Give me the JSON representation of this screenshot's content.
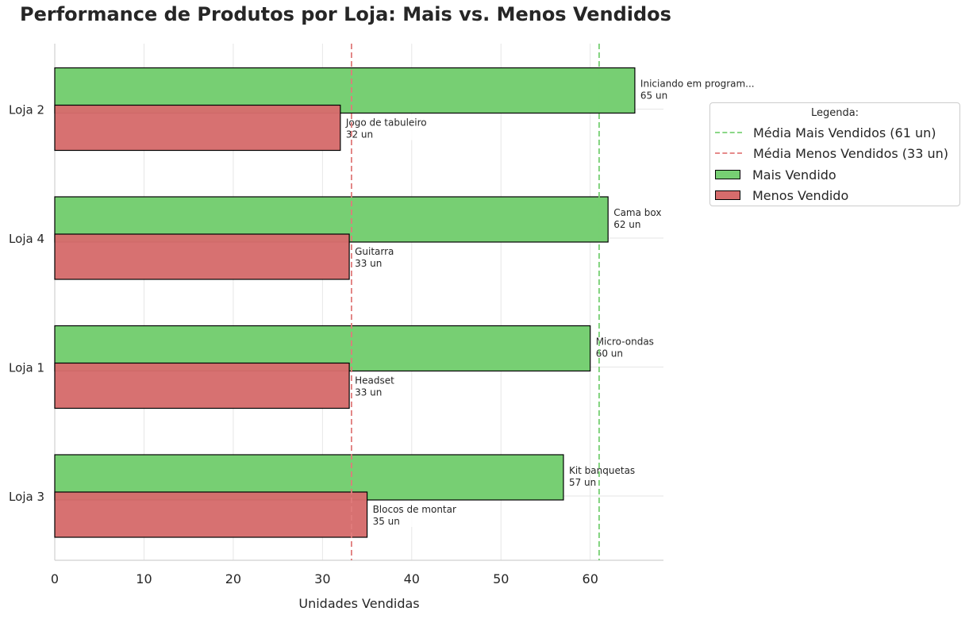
{
  "chart_data": {
    "type": "bar",
    "orientation": "horizontal",
    "title": "Performance de Produtos por Loja: Mais vs. Menos Vendidos",
    "xlabel": "Unidades Vendidas",
    "ylabel": "",
    "xlim": [
      0,
      68
    ],
    "xticks": [
      0,
      10,
      20,
      30,
      40,
      50,
      60
    ],
    "grid": true,
    "categories": [
      "Loja 2",
      "Loja 4",
      "Loja 1",
      "Loja 3"
    ],
    "series": [
      {
        "name": "Mais Vendido",
        "color": "#77cf73",
        "values": [
          65,
          62,
          60,
          57
        ],
        "products": [
          "Iniciando em program...",
          "Cama box",
          "Micro-ondas",
          "Kit banquetas"
        ],
        "value_labels": [
          "65 un",
          "62 un",
          "60 un",
          "57 un"
        ]
      },
      {
        "name": "Menos Vendido",
        "color": "#d66c6c",
        "values": [
          32,
          33,
          33,
          35
        ],
        "products": [
          "Jogo de tabuleiro",
          "Guitarra",
          "Headset",
          "Blocos de montar"
        ],
        "value_labels": [
          "32 un",
          "33 un",
          "33 un",
          "35 un"
        ]
      }
    ],
    "reference_lines": [
      {
        "name": "Média Mais Vendidos (61 un)",
        "value": 61.0,
        "color": "#77cf73"
      },
      {
        "name": "Média Menos Vendidos (33 un)",
        "value": 33.25,
        "color": "#e07b7b"
      }
    ],
    "legend": {
      "title": "Legenda:",
      "placement": "right",
      "items": [
        "Média Mais Vendidos (61 un)",
        "Média Menos Vendidos (33 un)",
        "Mais Vendido",
        "Menos Vendido"
      ]
    }
  }
}
